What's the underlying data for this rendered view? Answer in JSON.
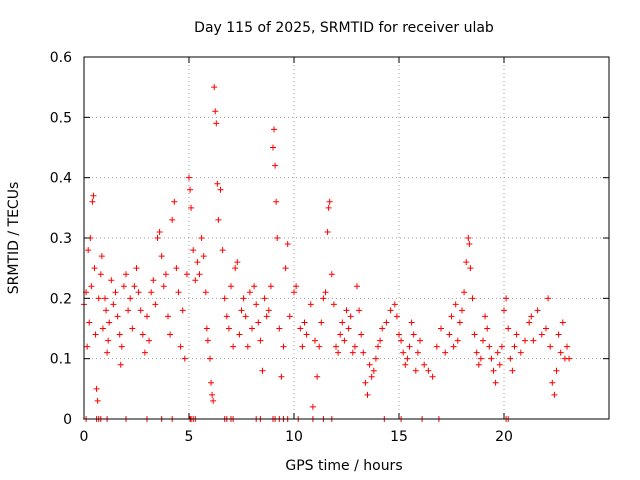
{
  "chart_data": {
    "type": "scatter",
    "title": "Day 115 of 2025, SRMTID for receiver ulab",
    "xlabel": "GPS time / hours",
    "ylabel": "SRMTID / TECUs",
    "xlim": [
      0,
      25
    ],
    "ylim": [
      0,
      0.6
    ],
    "xticks": [
      0,
      5,
      10,
      15,
      20
    ],
    "xtick_labels": [
      "0",
      "5",
      "10",
      "15",
      "20"
    ],
    "yticks": [
      0,
      0.1,
      0.2,
      0.3,
      0.4,
      0.5,
      0.6
    ],
    "ytick_labels": [
      "0",
      "0.1",
      "0.2",
      "0.3",
      "0.4",
      "0.5",
      "0.6"
    ],
    "grid": true,
    "marker": "+",
    "color": "#ff0000",
    "series": [
      {
        "name": "SRMTID",
        "points": [
          [
            0.0,
            0.19
          ],
          [
            0.1,
            0.21
          ],
          [
            0.15,
            0.12
          ],
          [
            0.2,
            0.28
          ],
          [
            0.25,
            0.16
          ],
          [
            0.3,
            0.3
          ],
          [
            0.35,
            0.22
          ],
          [
            0.4,
            0.36
          ],
          [
            0.45,
            0.37
          ],
          [
            0.5,
            0.25
          ],
          [
            0.55,
            0.14
          ],
          [
            0.6,
            0.05
          ],
          [
            0.65,
            0.03
          ],
          [
            0.7,
            0.2
          ],
          [
            0.8,
            0.24
          ],
          [
            0.85,
            0.27
          ],
          [
            0.9,
            0.15
          ],
          [
            1.0,
            0.2
          ],
          [
            1.05,
            0.18
          ],
          [
            1.1,
            0.11
          ],
          [
            1.15,
            0.13
          ],
          [
            1.2,
            0.16
          ],
          [
            1.3,
            0.23
          ],
          [
            1.4,
            0.19
          ],
          [
            1.5,
            0.21
          ],
          [
            1.6,
            0.17
          ],
          [
            1.7,
            0.14
          ],
          [
            1.75,
            0.09
          ],
          [
            1.8,
            0.12
          ],
          [
            1.9,
            0.22
          ],
          [
            2.0,
            0.24
          ],
          [
            2.1,
            0.18
          ],
          [
            2.2,
            0.2
          ],
          [
            2.3,
            0.15
          ],
          [
            2.4,
            0.22
          ],
          [
            2.5,
            0.25
          ],
          [
            2.6,
            0.21
          ],
          [
            2.7,
            0.18
          ],
          [
            2.8,
            0.14
          ],
          [
            2.9,
            0.11
          ],
          [
            3.0,
            0.17
          ],
          [
            3.1,
            0.13
          ],
          [
            3.2,
            0.21
          ],
          [
            3.3,
            0.23
          ],
          [
            3.4,
            0.19
          ],
          [
            3.5,
            0.3
          ],
          [
            3.6,
            0.31
          ],
          [
            3.7,
            0.27
          ],
          [
            3.8,
            0.22
          ],
          [
            3.9,
            0.24
          ],
          [
            4.0,
            0.17
          ],
          [
            4.1,
            0.14
          ],
          [
            4.2,
            0.33
          ],
          [
            4.3,
            0.36
          ],
          [
            4.4,
            0.25
          ],
          [
            4.5,
            0.21
          ],
          [
            4.6,
            0.12
          ],
          [
            4.7,
            0.18
          ],
          [
            4.8,
            0.1
          ],
          [
            4.9,
            0.24
          ],
          [
            5.0,
            0.4
          ],
          [
            5.05,
            0.38
          ],
          [
            5.1,
            0.35
          ],
          [
            5.2,
            0.28
          ],
          [
            5.3,
            0.23
          ],
          [
            5.4,
            0.26
          ],
          [
            5.5,
            0.24
          ],
          [
            5.6,
            0.3
          ],
          [
            5.7,
            0.27
          ],
          [
            5.8,
            0.21
          ],
          [
            5.85,
            0.15
          ],
          [
            5.9,
            0.13
          ],
          [
            6.0,
            0.1
          ],
          [
            6.05,
            0.06
          ],
          [
            6.1,
            0.04
          ],
          [
            6.15,
            0.03
          ],
          [
            6.2,
            0.55
          ],
          [
            6.25,
            0.51
          ],
          [
            6.3,
            0.49
          ],
          [
            6.35,
            0.39
          ],
          [
            6.4,
            0.33
          ],
          [
            6.5,
            0.38
          ],
          [
            6.6,
            0.28
          ],
          [
            6.7,
            0.2
          ],
          [
            6.8,
            0.17
          ],
          [
            6.9,
            0.15
          ],
          [
            7.0,
            0.22
          ],
          [
            7.1,
            0.12
          ],
          [
            7.2,
            0.25
          ],
          [
            7.3,
            0.26
          ],
          [
            7.4,
            0.14
          ],
          [
            7.5,
            0.18
          ],
          [
            7.6,
            0.2
          ],
          [
            7.7,
            0.17
          ],
          [
            7.8,
            0.12
          ],
          [
            7.9,
            0.21
          ],
          [
            8.0,
            0.15
          ],
          [
            8.1,
            0.22
          ],
          [
            8.2,
            0.19
          ],
          [
            8.3,
            0.16
          ],
          [
            8.4,
            0.13
          ],
          [
            8.5,
            0.08
          ],
          [
            8.6,
            0.2
          ],
          [
            8.7,
            0.17
          ],
          [
            8.8,
            0.18
          ],
          [
            8.9,
            0.22
          ],
          [
            9.0,
            0.45
          ],
          [
            9.05,
            0.48
          ],
          [
            9.1,
            0.42
          ],
          [
            9.15,
            0.36
          ],
          [
            9.2,
            0.3
          ],
          [
            9.3,
            0.15
          ],
          [
            9.4,
            0.07
          ],
          [
            9.5,
            0.12
          ],
          [
            9.6,
            0.25
          ],
          [
            9.7,
            0.29
          ],
          [
            9.8,
            0.17
          ],
          [
            10.0,
            0.21
          ],
          [
            10.1,
            0.22
          ],
          [
            10.3,
            0.15
          ],
          [
            10.4,
            0.12
          ],
          [
            10.5,
            0.16
          ],
          [
            10.6,
            0.14
          ],
          [
            10.8,
            0.19
          ],
          [
            10.9,
            0.02
          ],
          [
            11.0,
            0.13
          ],
          [
            11.1,
            0.07
          ],
          [
            11.2,
            0.12
          ],
          [
            11.3,
            0.16
          ],
          [
            11.4,
            0.2
          ],
          [
            11.5,
            0.21
          ],
          [
            11.6,
            0.31
          ],
          [
            11.65,
            0.35
          ],
          [
            11.7,
            0.36
          ],
          [
            11.8,
            0.24
          ],
          [
            11.9,
            0.19
          ],
          [
            12.0,
            0.12
          ],
          [
            12.1,
            0.11
          ],
          [
            12.2,
            0.14
          ],
          [
            12.3,
            0.16
          ],
          [
            12.4,
            0.13
          ],
          [
            12.5,
            0.18
          ],
          [
            12.6,
            0.15
          ],
          [
            12.7,
            0.17
          ],
          [
            12.8,
            0.11
          ],
          [
            12.9,
            0.12
          ],
          [
            13.0,
            0.22
          ],
          [
            13.1,
            0.18
          ],
          [
            13.2,
            0.14
          ],
          [
            13.3,
            0.11
          ],
          [
            13.4,
            0.06
          ],
          [
            13.5,
            0.04
          ],
          [
            13.6,
            0.09
          ],
          [
            13.7,
            0.07
          ],
          [
            13.8,
            0.08
          ],
          [
            13.9,
            0.1
          ],
          [
            14.0,
            0.12
          ],
          [
            14.1,
            0.13
          ],
          [
            14.2,
            0.15
          ],
          [
            14.4,
            0.16
          ],
          [
            14.6,
            0.18
          ],
          [
            14.8,
            0.19
          ],
          [
            14.9,
            0.17
          ],
          [
            15.0,
            0.14
          ],
          [
            15.1,
            0.13
          ],
          [
            15.2,
            0.11
          ],
          [
            15.3,
            0.09
          ],
          [
            15.4,
            0.1
          ],
          [
            15.5,
            0.12
          ],
          [
            15.6,
            0.16
          ],
          [
            15.7,
            0.14
          ],
          [
            15.8,
            0.08
          ],
          [
            15.9,
            0.11
          ],
          [
            16.0,
            0.13
          ],
          [
            16.2,
            0.09
          ],
          [
            16.4,
            0.08
          ],
          [
            16.6,
            0.07
          ],
          [
            16.8,
            0.12
          ],
          [
            17.0,
            0.15
          ],
          [
            17.2,
            0.11
          ],
          [
            17.4,
            0.14
          ],
          [
            17.5,
            0.17
          ],
          [
            17.6,
            0.12
          ],
          [
            17.7,
            0.19
          ],
          [
            17.8,
            0.13
          ],
          [
            17.9,
            0.16
          ],
          [
            18.0,
            0.18
          ],
          [
            18.1,
            0.21
          ],
          [
            18.2,
            0.26
          ],
          [
            18.3,
            0.3
          ],
          [
            18.35,
            0.29
          ],
          [
            18.4,
            0.25
          ],
          [
            18.5,
            0.2
          ],
          [
            18.6,
            0.14
          ],
          [
            18.7,
            0.11
          ],
          [
            18.8,
            0.09
          ],
          [
            18.9,
            0.1
          ],
          [
            19.0,
            0.13
          ],
          [
            19.1,
            0.17
          ],
          [
            19.2,
            0.15
          ],
          [
            19.3,
            0.12
          ],
          [
            19.4,
            0.1
          ],
          [
            19.5,
            0.08
          ],
          [
            19.6,
            0.06
          ],
          [
            19.7,
            0.11
          ],
          [
            19.8,
            0.09
          ],
          [
            19.9,
            0.12
          ],
          [
            20.0,
            0.18
          ],
          [
            20.1,
            0.2
          ],
          [
            20.2,
            0.15
          ],
          [
            20.3,
            0.1
          ],
          [
            20.4,
            0.08
          ],
          [
            20.5,
            0.12
          ],
          [
            20.6,
            0.14
          ],
          [
            20.8,
            0.11
          ],
          [
            21.0,
            0.13
          ],
          [
            21.2,
            0.16
          ],
          [
            21.3,
            0.17
          ],
          [
            21.4,
            0.13
          ],
          [
            21.6,
            0.18
          ],
          [
            21.8,
            0.14
          ],
          [
            22.0,
            0.15
          ],
          [
            22.1,
            0.2
          ],
          [
            22.2,
            0.12
          ],
          [
            22.3,
            0.06
          ],
          [
            22.4,
            0.04
          ],
          [
            22.5,
            0.08
          ],
          [
            22.6,
            0.14
          ],
          [
            22.7,
            0.11
          ],
          [
            22.8,
            0.16
          ],
          [
            22.9,
            0.1
          ],
          [
            23.0,
            0.12
          ],
          [
            23.1,
            0.1
          ]
        ],
        "zero_points": [
          0.1,
          0.6,
          0.7,
          0.8,
          1.1,
          2.0,
          3.0,
          3.7,
          4.2,
          5.05,
          5.1,
          5.2,
          5.3,
          6.7,
          6.8,
          7.0,
          7.1,
          8.2,
          8.4,
          9.0,
          9.1,
          9.3,
          9.5,
          9.7,
          10.2,
          10.9,
          11.4,
          11.8,
          14.3,
          15.1,
          16.1,
          16.9,
          20.1,
          20.2
        ]
      }
    ]
  }
}
